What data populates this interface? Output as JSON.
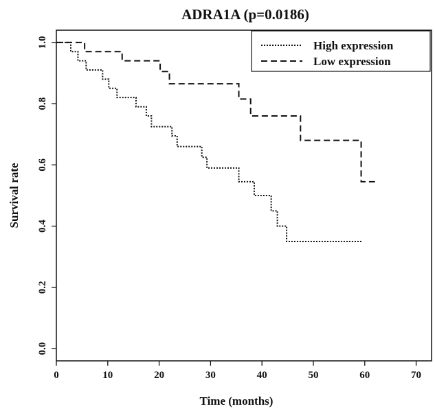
{
  "chart_data": {
    "type": "line",
    "title": "ADRA1A (p=0.0186)",
    "xlabel": "Time (months)",
    "ylabel": "Survival rate",
    "xlim": [
      0,
      73
    ],
    "ylim": [
      -0.04,
      1.04
    ],
    "xticks": [
      0,
      10,
      20,
      30,
      40,
      50,
      60,
      70
    ],
    "xtick_labels": [
      "0",
      "10",
      "20",
      "30",
      "40",
      "50",
      "60",
      "70"
    ],
    "yticks": [
      0.0,
      0.2,
      0.4,
      0.6,
      0.8,
      1.0
    ],
    "ytick_labels": [
      "0.0",
      "0.2",
      "0.4",
      "0.6",
      "0.8",
      "1.0"
    ],
    "grid": false,
    "legend_position": "top-right",
    "series": [
      {
        "name": "High expression",
        "style": "dotted",
        "color": "#111111",
        "steps": [
          [
            0,
            1.0
          ],
          [
            2.8,
            0.97
          ],
          [
            4.2,
            0.94
          ],
          [
            5.8,
            0.91
          ],
          [
            9.0,
            0.88
          ],
          [
            10.2,
            0.85
          ],
          [
            11.8,
            0.82
          ],
          [
            15.5,
            0.79
          ],
          [
            17.5,
            0.76
          ],
          [
            18.5,
            0.725
          ],
          [
            22.5,
            0.695
          ],
          [
            23.5,
            0.66
          ],
          [
            28.3,
            0.625
          ],
          [
            29.3,
            0.59
          ],
          [
            35.5,
            0.545
          ],
          [
            38.5,
            0.5
          ],
          [
            41.8,
            0.45
          ],
          [
            43.0,
            0.4
          ],
          [
            44.8,
            0.35
          ],
          [
            59.5,
            0.35
          ]
        ]
      },
      {
        "name": "Low expression",
        "style": "dashed",
        "color": "#111111",
        "steps": [
          [
            0,
            1.0
          ],
          [
            5.5,
            0.97
          ],
          [
            12.8,
            0.94
          ],
          [
            20.2,
            0.905
          ],
          [
            22.0,
            0.865
          ],
          [
            35.5,
            0.815
          ],
          [
            37.8,
            0.76
          ],
          [
            47.5,
            0.68
          ],
          [
            59.3,
            0.545
          ],
          [
            62.0,
            0.545
          ]
        ]
      }
    ]
  }
}
